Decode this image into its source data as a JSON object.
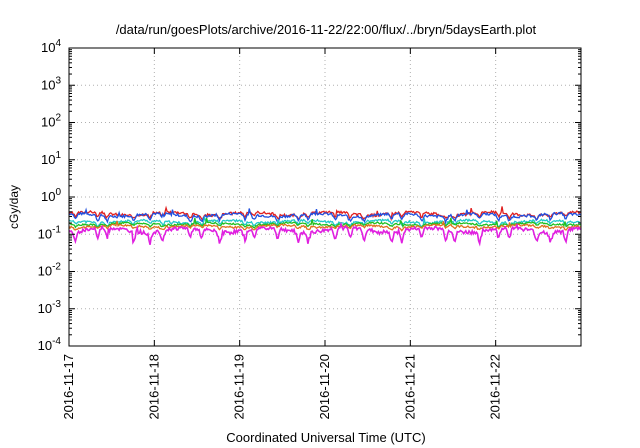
{
  "chart_data": {
    "type": "line",
    "title": "/data/run/goesPlots/archive/2016-11-22/22:00/flux/../bryn/5daysEarth.plot",
    "xlabel": "Coordinated Universal Time (UTC)",
    "ylabel": "cGy/day",
    "yscale": "log",
    "ylim": [
      0.0001,
      10000
    ],
    "xlim": [
      "2016-11-17",
      "2016-11-23"
    ],
    "x_ticks": [
      "2016-11-17",
      "2016-11-18",
      "2016-11-19",
      "2016-11-20",
      "2016-11-21",
      "2016-11-22"
    ],
    "y_ticks": [
      {
        "base": "10",
        "exp": "-4"
      },
      {
        "base": "10",
        "exp": "-3"
      },
      {
        "base": "10",
        "exp": "-2"
      },
      {
        "base": "10",
        "exp": "-1"
      },
      {
        "base": "10",
        "exp": "0"
      },
      {
        "base": "10",
        "exp": "1"
      },
      {
        "base": "10",
        "exp": "2"
      },
      {
        "base": "10",
        "exp": "3"
      },
      {
        "base": "10",
        "exp": "4"
      }
    ],
    "grid": true,
    "series": [
      {
        "color": "#e02020",
        "baseline": 0.36,
        "variation": 0.06,
        "dip": 0.75,
        "seed": 3
      },
      {
        "color": "#2050e0",
        "baseline": 0.33,
        "variation": 0.05,
        "dip": 0.7,
        "seed": 7
      },
      {
        "color": "#20c8c8",
        "baseline": 0.22,
        "variation": 0.03,
        "dip": 0.8,
        "seed": 11
      },
      {
        "color": "#20c020",
        "baseline": 0.19,
        "variation": 0.02,
        "dip": 0.85,
        "seed": 13
      },
      {
        "color": "#e07020",
        "baseline": 0.165,
        "variation": 0.02,
        "dip": 0.85,
        "seed": 17
      },
      {
        "color": "#e020e0",
        "baseline": 0.13,
        "variation": 0.03,
        "dip": 0.5,
        "seed": 19
      }
    ]
  }
}
